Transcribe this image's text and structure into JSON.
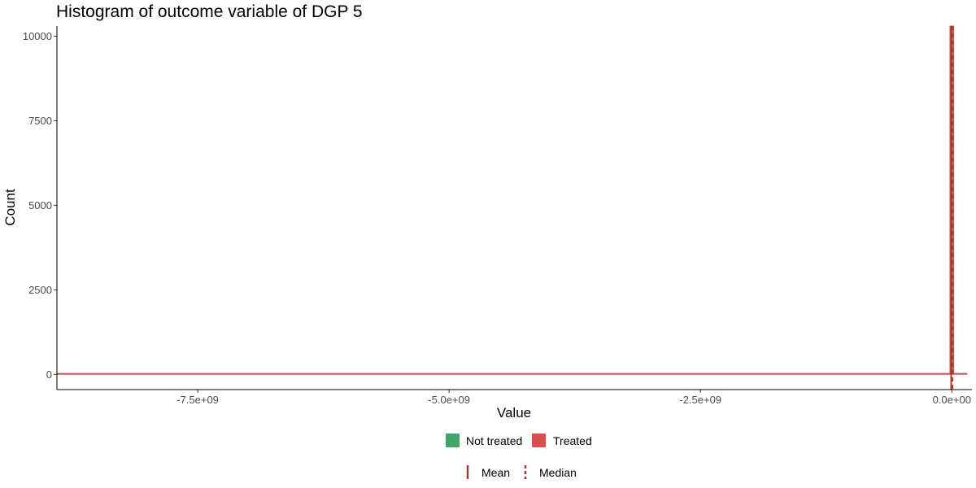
{
  "chart_data": {
    "type": "histogram",
    "title": "Histogram of outcome variable of DGP 5",
    "xlabel": "Value",
    "ylabel": "Count",
    "xlim": [
      -8900000000,
      200000000
    ],
    "ylim": [
      -450,
      10300
    ],
    "x_ticks": [
      {
        "value": -7500000000,
        "label": "-7.5e+09"
      },
      {
        "value": -5000000000,
        "label": "-5.0e+09"
      },
      {
        "value": -2500000000,
        "label": "-2.5e+09"
      },
      {
        "value": 0,
        "label": "0.0e+00"
      }
    ],
    "y_ticks": [
      {
        "value": 0,
        "label": "0"
      },
      {
        "value": 2500,
        "label": "2500"
      },
      {
        "value": 5000,
        "label": "5000"
      },
      {
        "value": 7500,
        "label": "7500"
      },
      {
        "value": 10000,
        "label": "10000"
      }
    ],
    "series": [
      {
        "name": "Not treated",
        "color": "#2e9a58",
        "bins": [
          {
            "x0": -8900000000,
            "x1": -20000000,
            "count": 0
          },
          {
            "x0": -20000000,
            "x1": 20000000,
            "count": 10300
          },
          {
            "x0": 20000000,
            "x1": 150000000,
            "count": 0
          }
        ]
      },
      {
        "name": "Treated",
        "color": "#d63c3c",
        "bins": [
          {
            "x0": -8900000000,
            "x1": -20000000,
            "count": 0
          },
          {
            "x0": -20000000,
            "x1": 20000000,
            "count": 10300
          },
          {
            "x0": 20000000,
            "x1": 150000000,
            "count": 0
          }
        ]
      }
    ],
    "reference_lines": [
      {
        "name": "Mean",
        "style": "solid",
        "color": "#a83a32",
        "x": 0
      },
      {
        "name": "Median",
        "style": "dashed",
        "color": "#a83a32",
        "x": 0
      }
    ],
    "legend_position": "bottom",
    "grid": false
  }
}
